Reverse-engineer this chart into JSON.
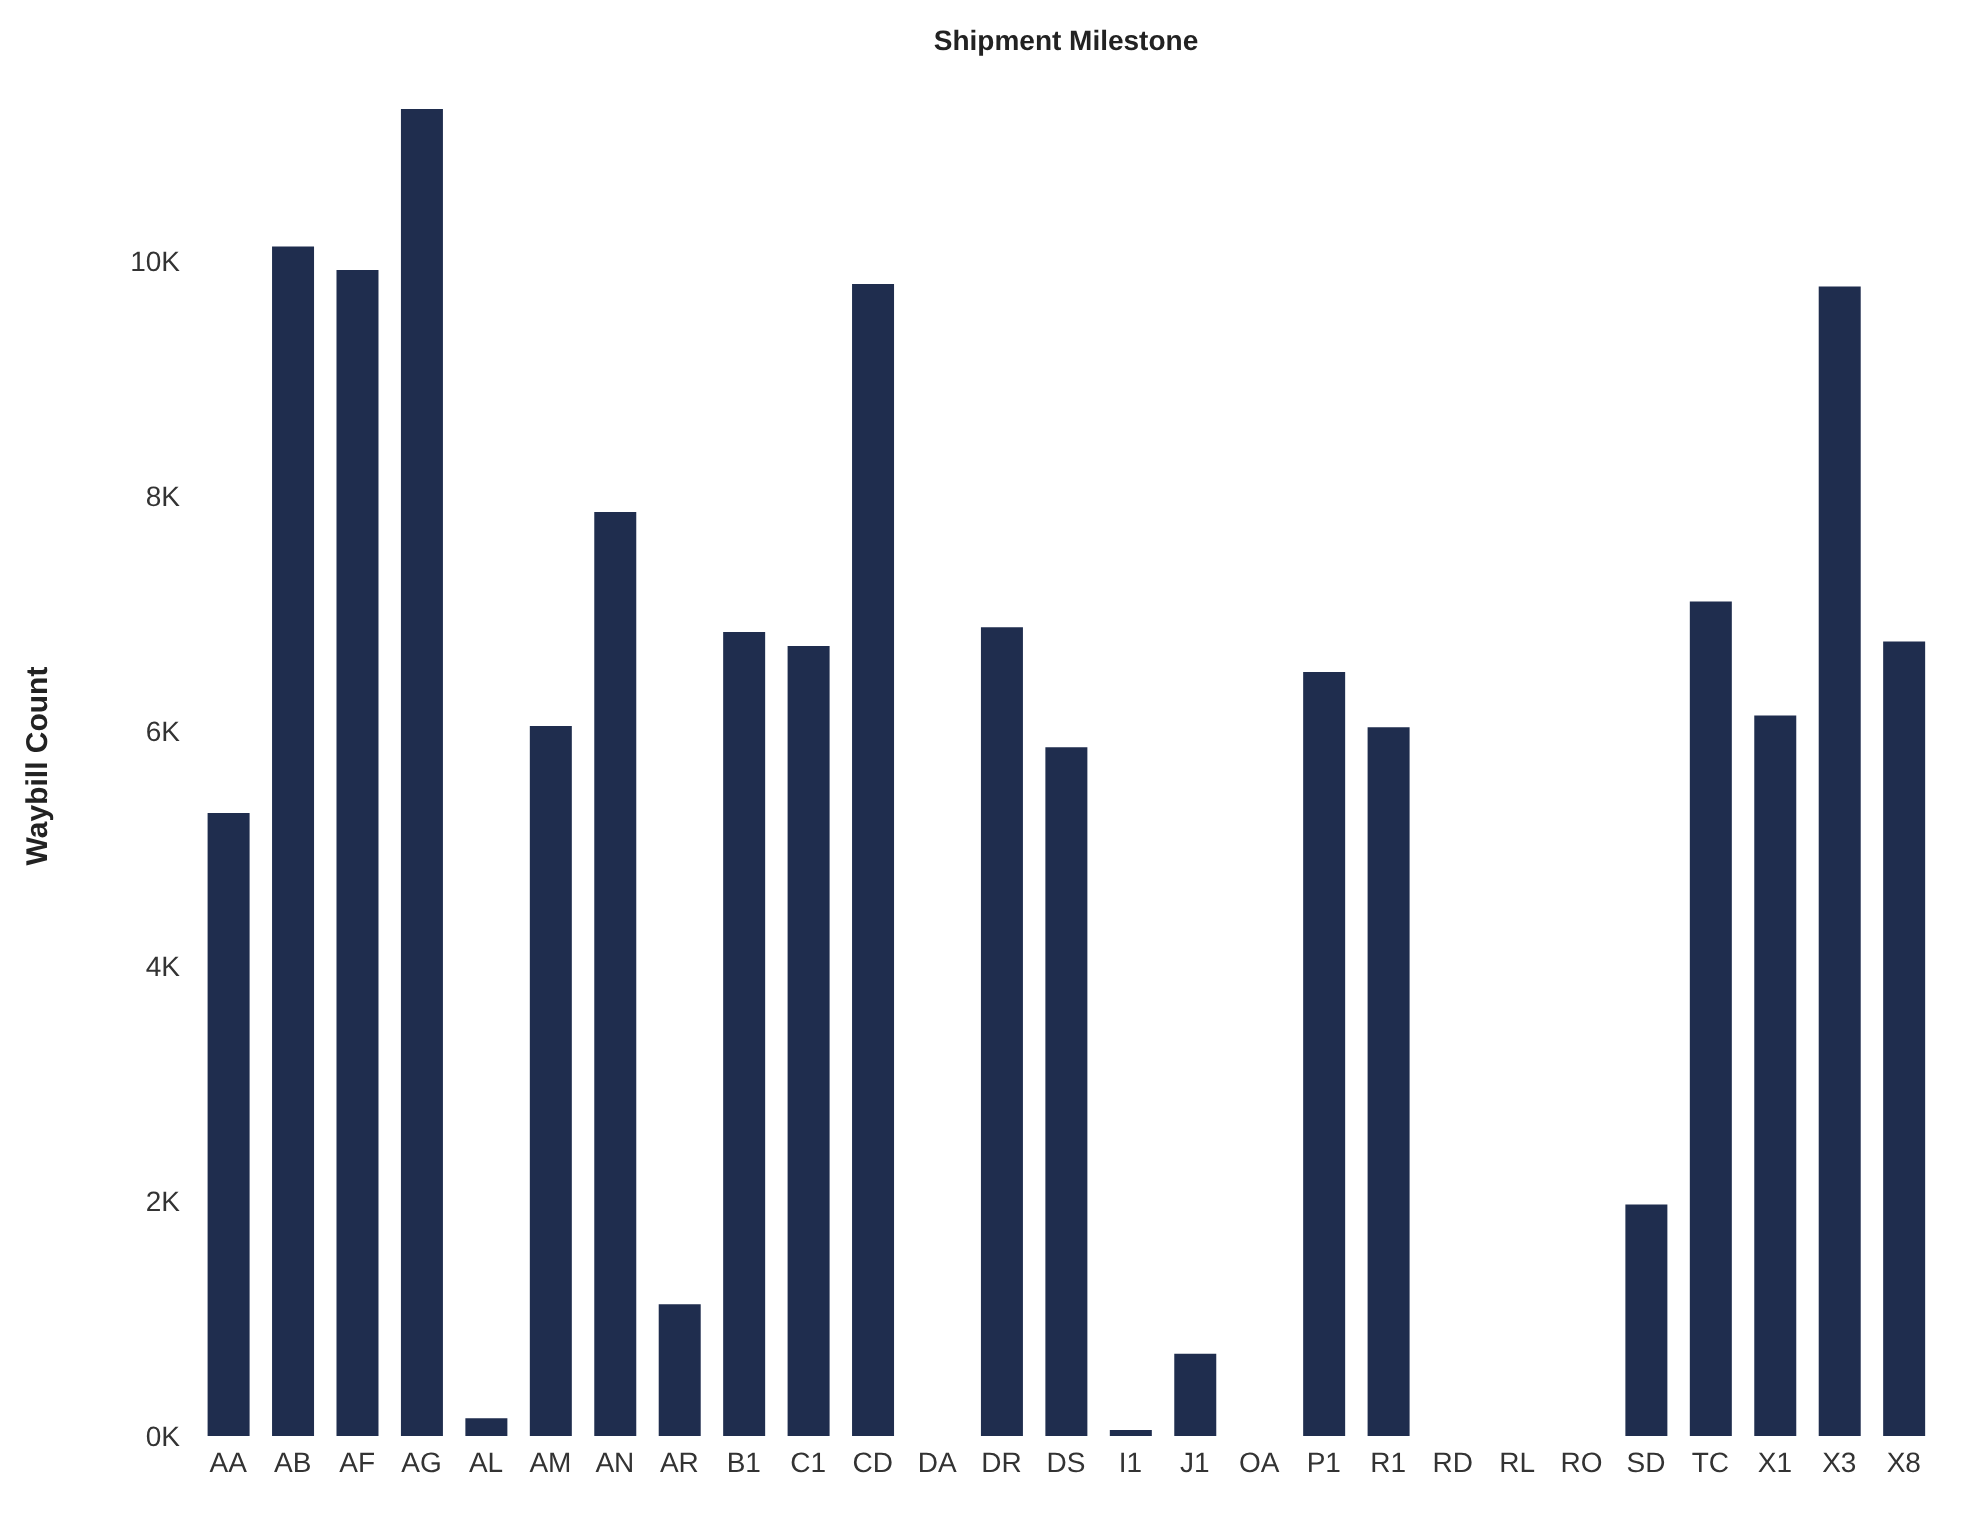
{
  "chart_data": {
    "type": "bar",
    "title": "Shipment Milestone",
    "ylabel": "Waybill Count",
    "categories": [
      "AA",
      "AB",
      "AF",
      "AG",
      "AL",
      "AM",
      "AN",
      "AR",
      "B1",
      "C1",
      "CD",
      "DA",
      "DR",
      "DS",
      "I1",
      "J1",
      "OA",
      "P1",
      "R1",
      "RD",
      "RL",
      "RO",
      "SD",
      "TC",
      "X1",
      "X3",
      "X8"
    ],
    "values": [
      5300,
      10120,
      9920,
      11290,
      150,
      6040,
      7860,
      1120,
      6840,
      6720,
      9800,
      0,
      6880,
      5860,
      50,
      700,
      0,
      6500,
      6030,
      0,
      0,
      0,
      1970,
      7100,
      6130,
      9780,
      6760
    ],
    "color": "#1f2d4e",
    "ylim": [
      0,
      11400
    ],
    "yticks": [
      {
        "value": 0,
        "label": "0K"
      },
      {
        "value": 2000,
        "label": "2K"
      },
      {
        "value": 4000,
        "label": "4K"
      },
      {
        "value": 6000,
        "label": "6K"
      },
      {
        "value": 8000,
        "label": "8K"
      },
      {
        "value": 10000,
        "label": "10K"
      }
    ],
    "grid": false,
    "legend": false
  }
}
